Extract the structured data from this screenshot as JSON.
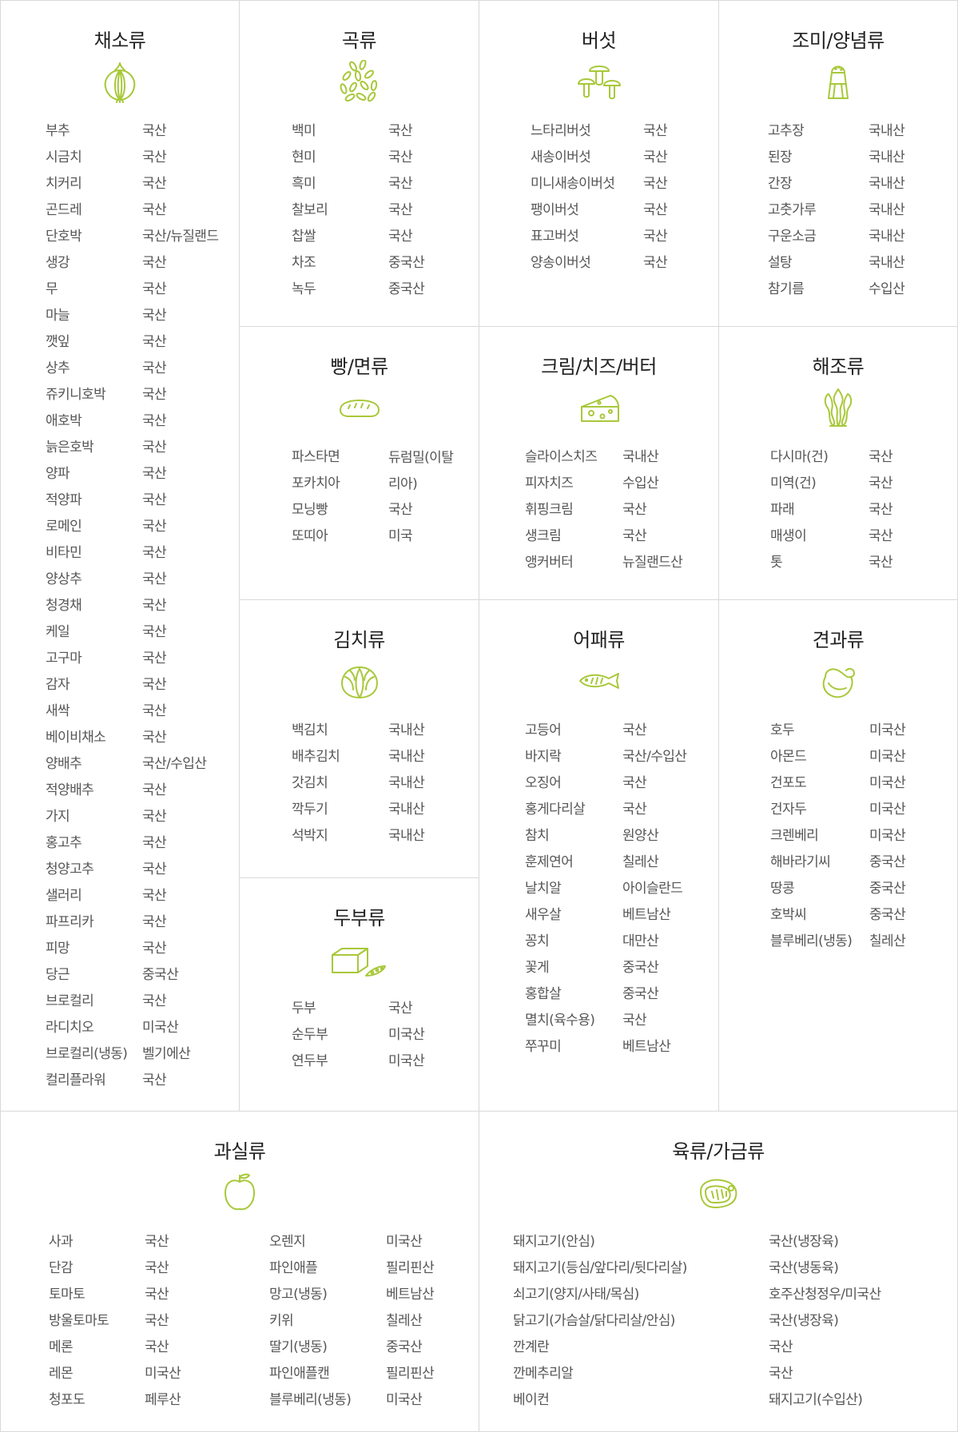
{
  "sections": {
    "vegetables": {
      "title": "채소류",
      "icon": "onion-icon",
      "items": [
        {
          "name": "부추",
          "origin": "국산"
        },
        {
          "name": "시금치",
          "origin": "국산"
        },
        {
          "name": "치커리",
          "origin": "국산"
        },
        {
          "name": "곤드레",
          "origin": "국산"
        },
        {
          "name": "단호박",
          "origin": "국산/뉴질랜드"
        },
        {
          "name": "생강",
          "origin": "국산"
        },
        {
          "name": "무",
          "origin": "국산"
        },
        {
          "name": "마늘",
          "origin": "국산"
        },
        {
          "name": "깻잎",
          "origin": "국산"
        },
        {
          "name": "상추",
          "origin": "국산"
        },
        {
          "name": "쥬키니호박",
          "origin": "국산"
        },
        {
          "name": "애호박",
          "origin": "국산"
        },
        {
          "name": "늙은호박",
          "origin": "국산"
        },
        {
          "name": "양파",
          "origin": "국산"
        },
        {
          "name": "적양파",
          "origin": "국산"
        },
        {
          "name": "로메인",
          "origin": "국산"
        },
        {
          "name": "비타민",
          "origin": "국산"
        },
        {
          "name": "양상추",
          "origin": "국산"
        },
        {
          "name": "청경채",
          "origin": "국산"
        },
        {
          "name": "케일",
          "origin": "국산"
        },
        {
          "name": "고구마",
          "origin": "국산"
        },
        {
          "name": "감자",
          "origin": "국산"
        },
        {
          "name": "새싹",
          "origin": "국산"
        },
        {
          "name": "베이비채소",
          "origin": "국산"
        },
        {
          "name": "양배추",
          "origin": "국산/수입산"
        },
        {
          "name": "적양배추",
          "origin": "국산"
        },
        {
          "name": "가지",
          "origin": "국산"
        },
        {
          "name": "홍고추",
          "origin": "국산"
        },
        {
          "name": "청양고추",
          "origin": "국산"
        },
        {
          "name": "샐러리",
          "origin": "국산"
        },
        {
          "name": "파프리카",
          "origin": "국산"
        },
        {
          "name": "피망",
          "origin": "국산"
        },
        {
          "name": "당근",
          "origin": "중국산"
        },
        {
          "name": "브로컬리",
          "origin": "국산"
        },
        {
          "name": "라디치오",
          "origin": "미국산"
        },
        {
          "name": "브로컬리(냉동)",
          "origin": "벨기에산"
        },
        {
          "name": "컬리플라워",
          "origin": "국산"
        }
      ]
    },
    "grains": {
      "title": "곡류",
      "icon": "grains-icon",
      "items": [
        {
          "name": "백미",
          "origin": "국산"
        },
        {
          "name": "현미",
          "origin": "국산"
        },
        {
          "name": "흑미",
          "origin": "국산"
        },
        {
          "name": "찰보리",
          "origin": "국산"
        },
        {
          "name": "찹쌀",
          "origin": "국산"
        },
        {
          "name": "차조",
          "origin": "중국산"
        },
        {
          "name": "녹두",
          "origin": "중국산"
        }
      ]
    },
    "mushrooms": {
      "title": "버섯",
      "icon": "mushroom-icon",
      "items": [
        {
          "name": "느타리버섯",
          "origin": "국산"
        },
        {
          "name": "새송이버섯",
          "origin": "국산"
        },
        {
          "name": "미니새송이버섯",
          "origin": "국산"
        },
        {
          "name": "팽이버섯",
          "origin": "국산"
        },
        {
          "name": "표고버섯",
          "origin": "국산"
        },
        {
          "name": "양송이버섯",
          "origin": "국산"
        }
      ]
    },
    "seasonings": {
      "title": "조미/양념류",
      "icon": "salt-shaker-icon",
      "items": [
        {
          "name": "고추장",
          "origin": "국내산"
        },
        {
          "name": "된장",
          "origin": "국내산"
        },
        {
          "name": "간장",
          "origin": "국내산"
        },
        {
          "name": "고춧가루",
          "origin": "국내산"
        },
        {
          "name": "구운소금",
          "origin": "국내산"
        },
        {
          "name": "설탕",
          "origin": "국내산"
        },
        {
          "name": "참기름",
          "origin": "수입산"
        }
      ]
    },
    "bread": {
      "title": "빵/면류",
      "icon": "bread-icon",
      "items": [
        {
          "name": "파스타면",
          "origin": "듀럼밀(이탈리아)"
        },
        {
          "name": "포카치아",
          "origin": ""
        },
        {
          "name": "모닝빵",
          "origin": "국산"
        },
        {
          "name": "또띠아",
          "origin": "미국"
        }
      ]
    },
    "dairy": {
      "title": "크림/치즈/버터",
      "icon": "cheese-icon",
      "items": [
        {
          "name": "슬라이스치즈",
          "origin": "국내산"
        },
        {
          "name": "피자치즈",
          "origin": "수입산"
        },
        {
          "name": "휘핑크림",
          "origin": "국산"
        },
        {
          "name": "생크림",
          "origin": "국산"
        },
        {
          "name": "앵커버터",
          "origin": "뉴질랜드산"
        }
      ]
    },
    "seaweed": {
      "title": "해조류",
      "icon": "seaweed-icon",
      "items": [
        {
          "name": "다시마(건)",
          "origin": "국산"
        },
        {
          "name": "미역(건)",
          "origin": "국산"
        },
        {
          "name": "파래",
          "origin": "국산"
        },
        {
          "name": "매생이",
          "origin": "국산"
        },
        {
          "name": "톳",
          "origin": "국산"
        }
      ]
    },
    "kimchi": {
      "title": "김치류",
      "icon": "cabbage-icon",
      "items": [
        {
          "name": "백김치",
          "origin": "국내산"
        },
        {
          "name": "배추김치",
          "origin": "국내산"
        },
        {
          "name": "갓김치",
          "origin": "국내산"
        },
        {
          "name": "깍두기",
          "origin": "국내산"
        },
        {
          "name": "석박지",
          "origin": "국내산"
        }
      ]
    },
    "seafood": {
      "title": "어패류",
      "icon": "fish-icon",
      "items": [
        {
          "name": "고등어",
          "origin": "국산"
        },
        {
          "name": "바지락",
          "origin": "국산/수입산"
        },
        {
          "name": "오징어",
          "origin": "국산"
        },
        {
          "name": "홍게다리살",
          "origin": "국산"
        },
        {
          "name": "참치",
          "origin": "원양산"
        },
        {
          "name": "훈제연어",
          "origin": "칠레산"
        },
        {
          "name": "날치알",
          "origin": "아이슬란드"
        },
        {
          "name": "새우살",
          "origin": "베트남산"
        },
        {
          "name": "꽁치",
          "origin": "대만산"
        },
        {
          "name": "꽃게",
          "origin": "중국산"
        },
        {
          "name": "홍합살",
          "origin": "중국산"
        },
        {
          "name": "멸치(육수용)",
          "origin": "국산"
        },
        {
          "name": "쭈꾸미",
          "origin": "베트남산"
        }
      ]
    },
    "nuts": {
      "title": "견과류",
      "icon": "nut-icon",
      "items": [
        {
          "name": "호두",
          "origin": "미국산"
        },
        {
          "name": "아몬드",
          "origin": "미국산"
        },
        {
          "name": "건포도",
          "origin": "미국산"
        },
        {
          "name": "건자두",
          "origin": "미국산"
        },
        {
          "name": "크렌베리",
          "origin": "미국산"
        },
        {
          "name": "해바라기씨",
          "origin": "중국산"
        },
        {
          "name": "땅콩",
          "origin": "중국산"
        },
        {
          "name": "호박씨",
          "origin": "중국산"
        },
        {
          "name": "블루베리(냉동)",
          "origin": "칠레산"
        }
      ]
    },
    "tofu": {
      "title": "두부류",
      "icon": "tofu-icon",
      "items": [
        {
          "name": "두부",
          "origin": "국산"
        },
        {
          "name": "순두부",
          "origin": "미국산"
        },
        {
          "name": "연두부",
          "origin": "미국산"
        }
      ]
    },
    "fruits": {
      "title": "과실류",
      "icon": "apple-icon",
      "items_left": [
        {
          "name": "사과",
          "origin": "국산"
        },
        {
          "name": "단감",
          "origin": "국산"
        },
        {
          "name": "토마토",
          "origin": "국산"
        },
        {
          "name": "방울토마토",
          "origin": "국산"
        },
        {
          "name": "메론",
          "origin": "국산"
        },
        {
          "name": "레몬",
          "origin": "미국산"
        },
        {
          "name": "청포도",
          "origin": "페루산"
        }
      ],
      "items_right": [
        {
          "name": "오렌지",
          "origin": "미국산"
        },
        {
          "name": "파인애플",
          "origin": "필리핀산"
        },
        {
          "name": "망고(냉동)",
          "origin": "베트남산"
        },
        {
          "name": "키위",
          "origin": "칠레산"
        },
        {
          "name": "딸기(냉동)",
          "origin": "중국산"
        },
        {
          "name": "파인애플캔",
          "origin": "필리핀산"
        },
        {
          "name": "블루베리(냉동)",
          "origin": "미국산"
        }
      ]
    },
    "meat": {
      "title": "육류/가금류",
      "icon": "meat-icon",
      "items": [
        {
          "name": "돼지고기(안심)",
          "origin": "국산(냉장육)"
        },
        {
          "name": "돼지고기(등심/앞다리/뒷다리살)",
          "origin": "국산(냉동육)"
        },
        {
          "name": "쇠고기(양지/사태/목심)",
          "origin": "호주산청정우/미국산"
        },
        {
          "name": "닭고기(가슴살/닭다리살/안심)",
          "origin": "국산(냉장육)"
        },
        {
          "name": "깐계란",
          "origin": "국산"
        },
        {
          "name": "깐메추리알",
          "origin": "국산"
        },
        {
          "name": "베이컨",
          "origin": "돼지고기(수입산)"
        }
      ]
    }
  }
}
